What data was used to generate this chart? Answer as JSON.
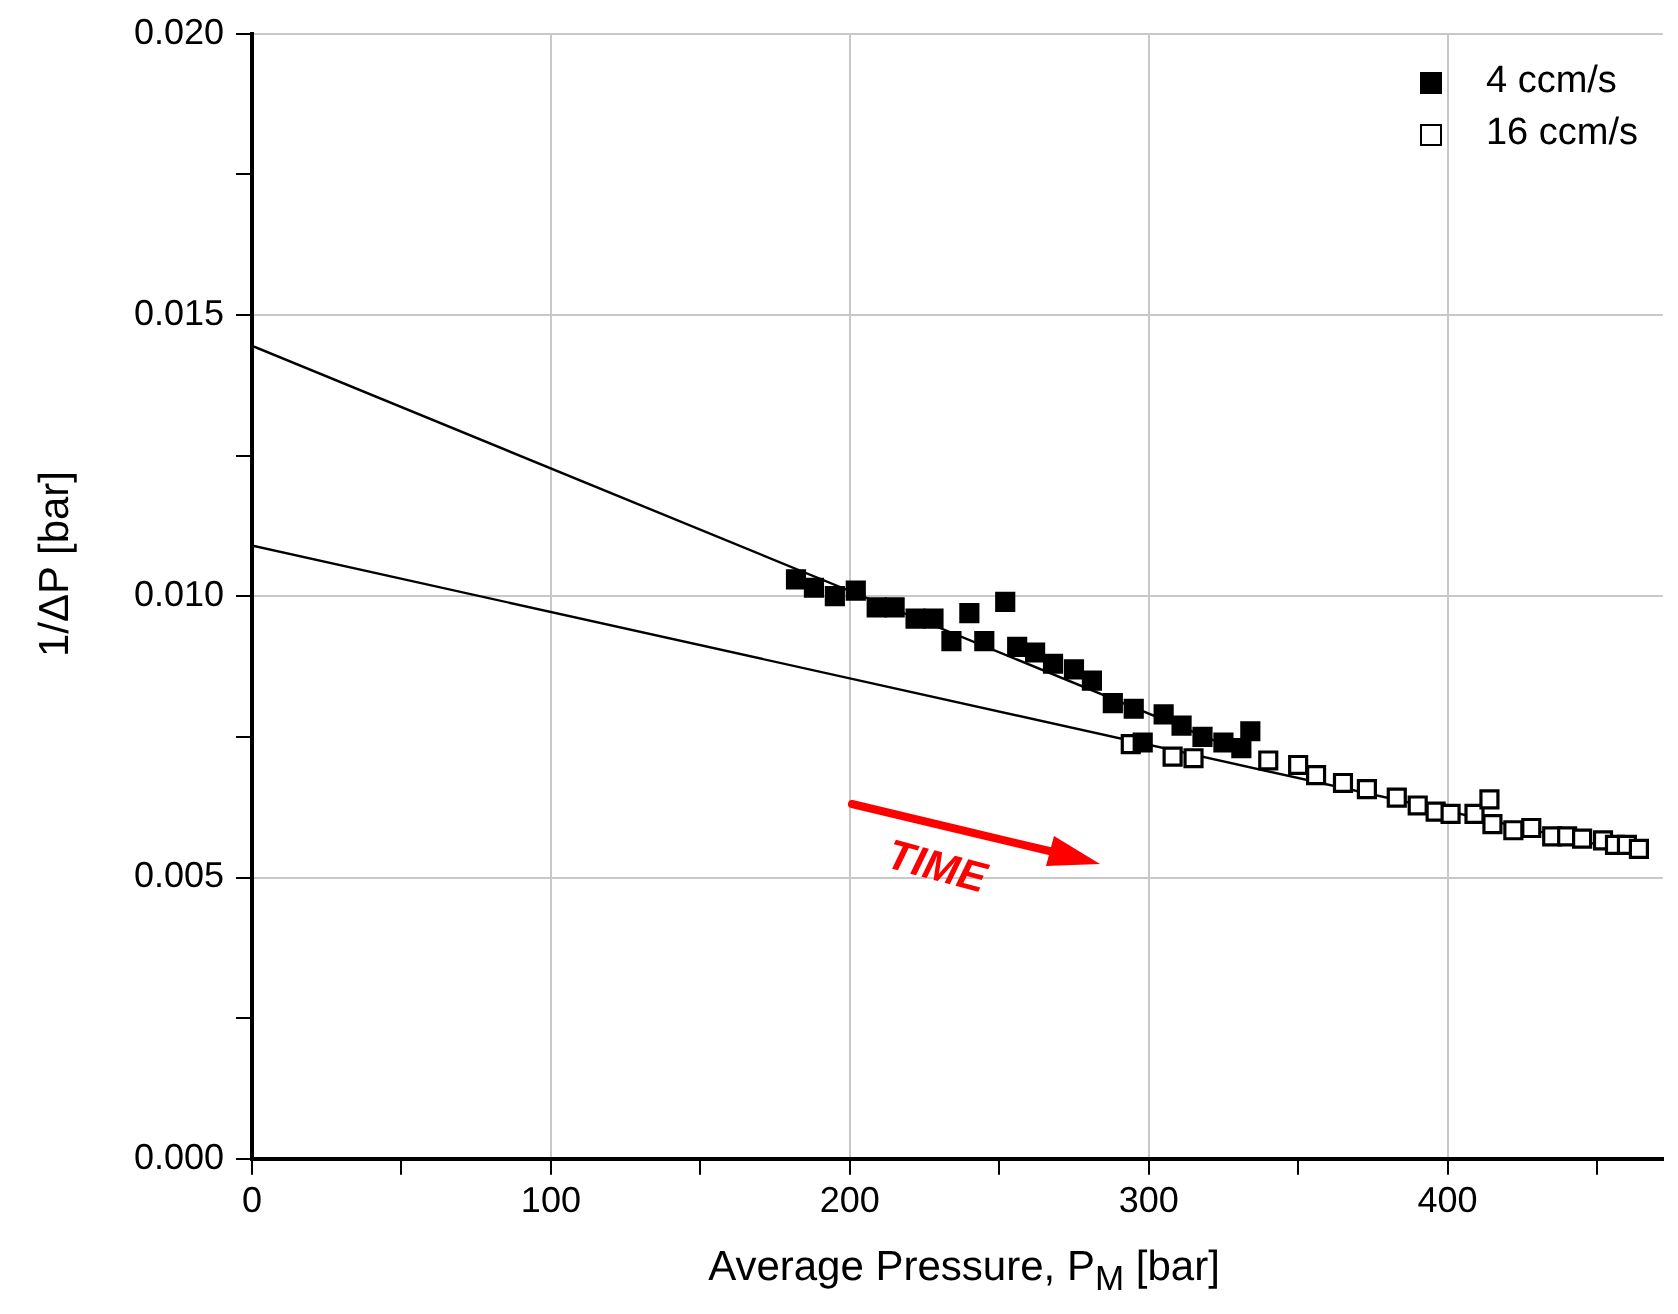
{
  "chart_data": {
    "type": "scatter",
    "xlabel": "Average Pressure, P$_{M}$ [bar]",
    "ylabel": "1/ΔP [bar]",
    "xlim": [
      0,
      472
    ],
    "ylim": [
      0,
      0.02
    ],
    "xticks": [
      0,
      {
        "value": 50,
        "label": null
      },
      100,
      {
        "value": 150,
        "label": null
      },
      200,
      {
        "value": 250,
        "label": null
      },
      300,
      {
        "value": 350,
        "label": null
      },
      400,
      {
        "value": 450,
        "label": null
      }
    ],
    "yticks": [
      {
        "value": 0,
        "label": "0.000"
      },
      {
        "value": 0.0025,
        "label": null
      },
      {
        "value": 0.005,
        "label": "0.005"
      },
      {
        "value": 0.0075,
        "label": null
      },
      {
        "value": 0.01,
        "label": "0.010"
      },
      {
        "value": 0.0125,
        "label": null
      },
      {
        "value": 0.015,
        "label": "0.015"
      },
      {
        "value": 0.0175,
        "label": null
      },
      {
        "value": 0.02,
        "label": "0.020"
      }
    ],
    "grid": true,
    "legend": "top right",
    "series": [
      {
        "name": "4 ccm/s",
        "color": "#000000",
        "marker": "square",
        "x": [
          182,
          188,
          195,
          202,
          209,
          215,
          222,
          228,
          234,
          240,
          245,
          252,
          256,
          262,
          268,
          275,
          281,
          288,
          295,
          298,
          305,
          311,
          318,
          325,
          331,
          334
        ],
        "values": [
          0.0103,
          0.01015,
          0.01,
          0.0101,
          0.0098,
          0.0098,
          0.0096,
          0.0096,
          0.0092,
          0.0097,
          0.0092,
          0.0099,
          0.0091,
          0.009,
          0.0088,
          0.0087,
          0.0085,
          0.0081,
          0.008,
          0.0074,
          0.0079,
          0.0077,
          0.0075,
          0.0074,
          0.0073,
          0.0076
        ]
      },
      {
        "name": "16 ccm/s",
        "color": "#000000",
        "marker": "square",
        "x": [
          294,
          300,
          308,
          315,
          340,
          350,
          356,
          365,
          373,
          383,
          390,
          396,
          401,
          409,
          414,
          415,
          422,
          428,
          435,
          440,
          445,
          452,
          456,
          460,
          464
        ],
        "values": [
          0.00737,
          null,
          0.00715,
          0.00712,
          0.00708,
          0.007,
          0.00682,
          0.00668,
          0.00657,
          0.00642,
          0.00628,
          0.00617,
          0.00613,
          0.00613,
          0.00639,
          0.00595,
          0.00584,
          0.00588,
          0.00573,
          0.00573,
          0.00569,
          0.00566,
          0.00558,
          0.00558,
          0.00551
        ]
      },
      {
        "type": "line",
        "color": "#000000",
        "x": [
          0,
          330
        ],
        "values": [
          0.01445,
          0.00726
        ]
      },
      {
        "type": "line",
        "color": "#000000",
        "x": [
          0,
          466
        ],
        "values": [
          0.0109,
          0.0054
        ]
      }
    ],
    "annotations": [
      "TIME"
    ]
  }
}
